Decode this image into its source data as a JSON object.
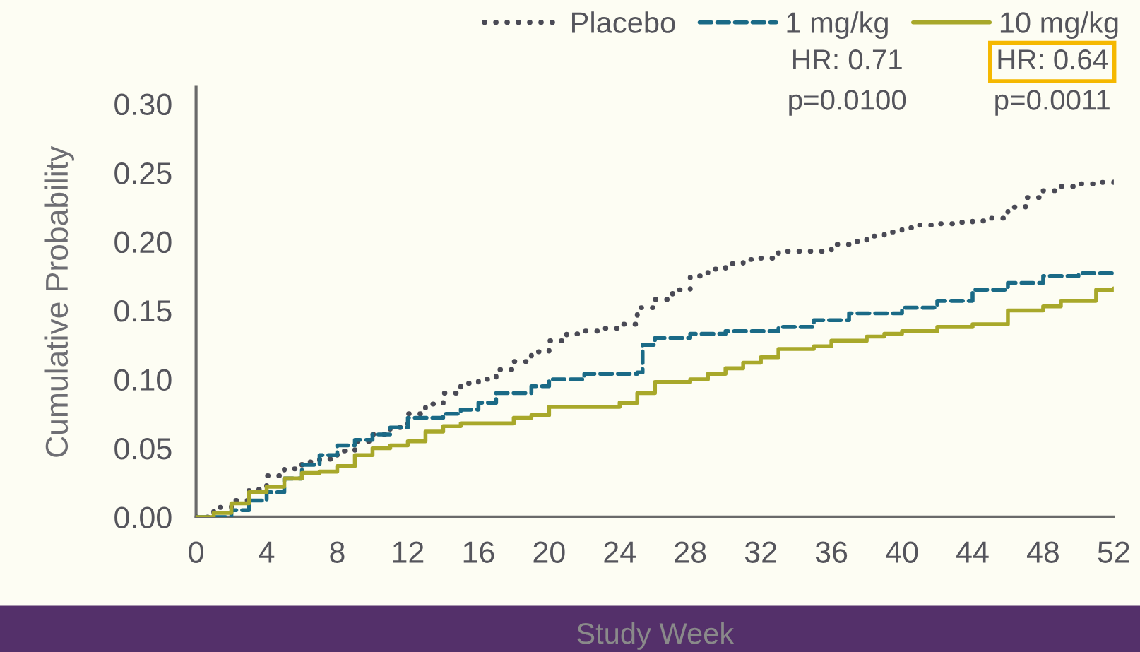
{
  "chart_data": {
    "type": "step",
    "xlabel": "Study Week",
    "ylabel": "Cumulative Probability",
    "xlim": [
      0,
      52
    ],
    "xticks": [
      0,
      4,
      8,
      12,
      16,
      20,
      24,
      28,
      32,
      36,
      40,
      44,
      48,
      52
    ],
    "ylim": [
      0,
      0.312
    ],
    "yticks": [
      {
        "value": 0,
        "label": "0.00"
      },
      {
        "value": 0.05,
        "label": "0.05"
      },
      {
        "value": 0.1,
        "label": "0.10"
      },
      {
        "value": 0.15,
        "label": "0.15"
      },
      {
        "value": 0.2,
        "label": "0.20"
      },
      {
        "value": 0.25,
        "label": "0.25"
      },
      {
        "value": 0.3,
        "label": "0.30"
      }
    ],
    "grid": false,
    "legend": "top right",
    "marker": "none",
    "annotations": [
      "HR: 0.71",
      "p=0.0100",
      "HR: 0.64",
      "p=0.0011"
    ],
    "series": [
      {
        "name": "Placebo",
        "color": "#4a4a55",
        "line_style": "dotted",
        "x": [
          0,
          1,
          2,
          3,
          4,
          5,
          6,
          7,
          8,
          9,
          10,
          11,
          12,
          13,
          14,
          15,
          16,
          17,
          18,
          19,
          20,
          21,
          22,
          23,
          24,
          25,
          26,
          27,
          28,
          29,
          30,
          31,
          32,
          33,
          34,
          35,
          36,
          37,
          38,
          39,
          40,
          41,
          42,
          43,
          44,
          45,
          46,
          47,
          48,
          49,
          50,
          51,
          52
        ],
        "values": [
          0,
          0.007,
          0.012,
          0.02,
          0.03,
          0.035,
          0.04,
          0.042,
          0.048,
          0.055,
          0.06,
          0.065,
          0.075,
          0.082,
          0.09,
          0.097,
          0.1,
          0.107,
          0.113,
          0.12,
          0.128,
          0.133,
          0.135,
          0.137,
          0.14,
          0.152,
          0.158,
          0.165,
          0.175,
          0.18,
          0.184,
          0.187,
          0.188,
          0.193,
          0.193,
          0.193,
          0.198,
          0.2,
          0.204,
          0.207,
          0.21,
          0.212,
          0.213,
          0.214,
          0.215,
          0.217,
          0.225,
          0.232,
          0.237,
          0.24,
          0.242,
          0.243,
          0.245
        ]
      },
      {
        "name": "1 mg/kg",
        "color": "#1a6a86",
        "line_style": "dashed",
        "x": [
          0,
          2,
          3,
          4,
          5,
          6,
          7,
          8,
          9,
          10,
          11,
          12,
          14,
          15,
          16,
          17,
          19,
          20,
          22,
          25,
          25.3,
          26,
          28,
          30,
          33,
          35,
          37,
          40,
          42,
          44,
          46,
          48,
          50,
          52
        ],
        "values": [
          0,
          0.005,
          0.012,
          0.018,
          0.028,
          0.038,
          0.045,
          0.052,
          0.056,
          0.06,
          0.065,
          0.072,
          0.075,
          0.078,
          0.083,
          0.09,
          0.095,
          0.1,
          0.104,
          0.105,
          0.125,
          0.13,
          0.133,
          0.135,
          0.138,
          0.143,
          0.148,
          0.152,
          0.157,
          0.165,
          0.17,
          0.175,
          0.177,
          0.177
        ]
      },
      {
        "name": "10 mg/kg",
        "color": "#a8a82a",
        "line_style": "solid",
        "x": [
          0,
          1,
          2,
          3,
          4,
          5,
          6,
          7,
          8,
          9,
          10,
          11,
          12,
          13,
          14,
          15,
          18,
          19,
          20,
          24,
          25,
          26,
          28,
          29,
          30,
          31,
          32,
          33,
          35,
          36,
          38,
          39,
          40,
          42,
          44,
          46,
          48,
          49,
          51,
          52
        ],
        "values": [
          0,
          0.003,
          0.01,
          0.018,
          0.022,
          0.028,
          0.032,
          0.033,
          0.037,
          0.045,
          0.05,
          0.052,
          0.055,
          0.062,
          0.066,
          0.068,
          0.072,
          0.074,
          0.08,
          0.083,
          0.09,
          0.098,
          0.1,
          0.104,
          0.108,
          0.112,
          0.116,
          0.122,
          0.124,
          0.128,
          0.131,
          0.133,
          0.135,
          0.138,
          0.14,
          0.15,
          0.153,
          0.157,
          0.165,
          0.166
        ]
      }
    ]
  }
}
